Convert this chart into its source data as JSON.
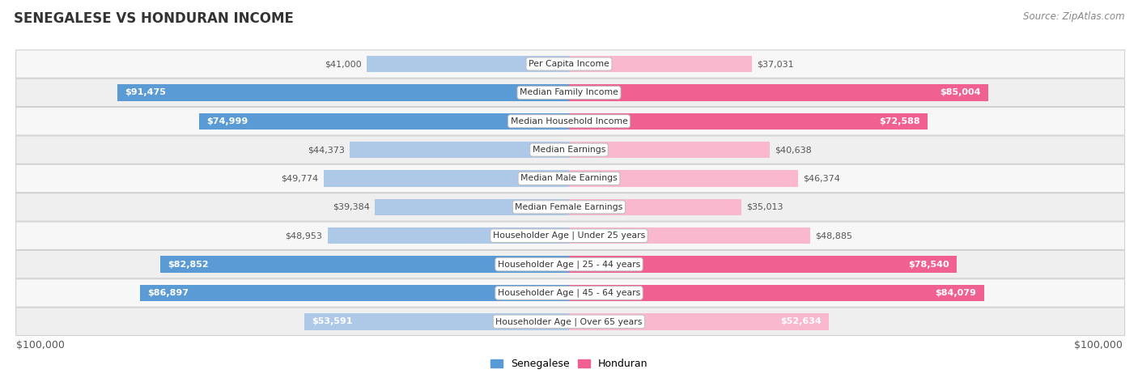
{
  "title": "SENEGALESE VS HONDURAN INCOME",
  "source": "Source: ZipAtlas.com",
  "categories": [
    "Per Capita Income",
    "Median Family Income",
    "Median Household Income",
    "Median Earnings",
    "Median Male Earnings",
    "Median Female Earnings",
    "Householder Age | Under 25 years",
    "Householder Age | 25 - 44 years",
    "Householder Age | 45 - 64 years",
    "Householder Age | Over 65 years"
  ],
  "senegalese": [
    41000,
    91475,
    74999,
    44373,
    49774,
    39384,
    48953,
    82852,
    86897,
    53591
  ],
  "honduran": [
    37031,
    85004,
    72588,
    40638,
    46374,
    35013,
    48885,
    78540,
    84079,
    52634
  ],
  "senegalese_labels": [
    "$41,000",
    "$91,475",
    "$74,999",
    "$44,373",
    "$49,774",
    "$39,384",
    "$48,953",
    "$82,852",
    "$86,897",
    "$53,591"
  ],
  "honduran_labels": [
    "$37,031",
    "$85,004",
    "$72,588",
    "$40,638",
    "$46,374",
    "$35,013",
    "$48,885",
    "$78,540",
    "$84,079",
    "$52,634"
  ],
  "max_value": 100000,
  "bar_height": 0.58,
  "senegalese_light": "#aec8e8",
  "senegalese_dark": "#5b9bd5",
  "honduran_light": "#f9b8ce",
  "honduran_dark": "#f06090",
  "row_bg_odd": "#f7f7f7",
  "row_bg_even": "#efefef",
  "large_threshold": 60000,
  "label_inside_threshold": 50000,
  "inside_label_color": "#ffffff",
  "outside_label_color": "#555555"
}
